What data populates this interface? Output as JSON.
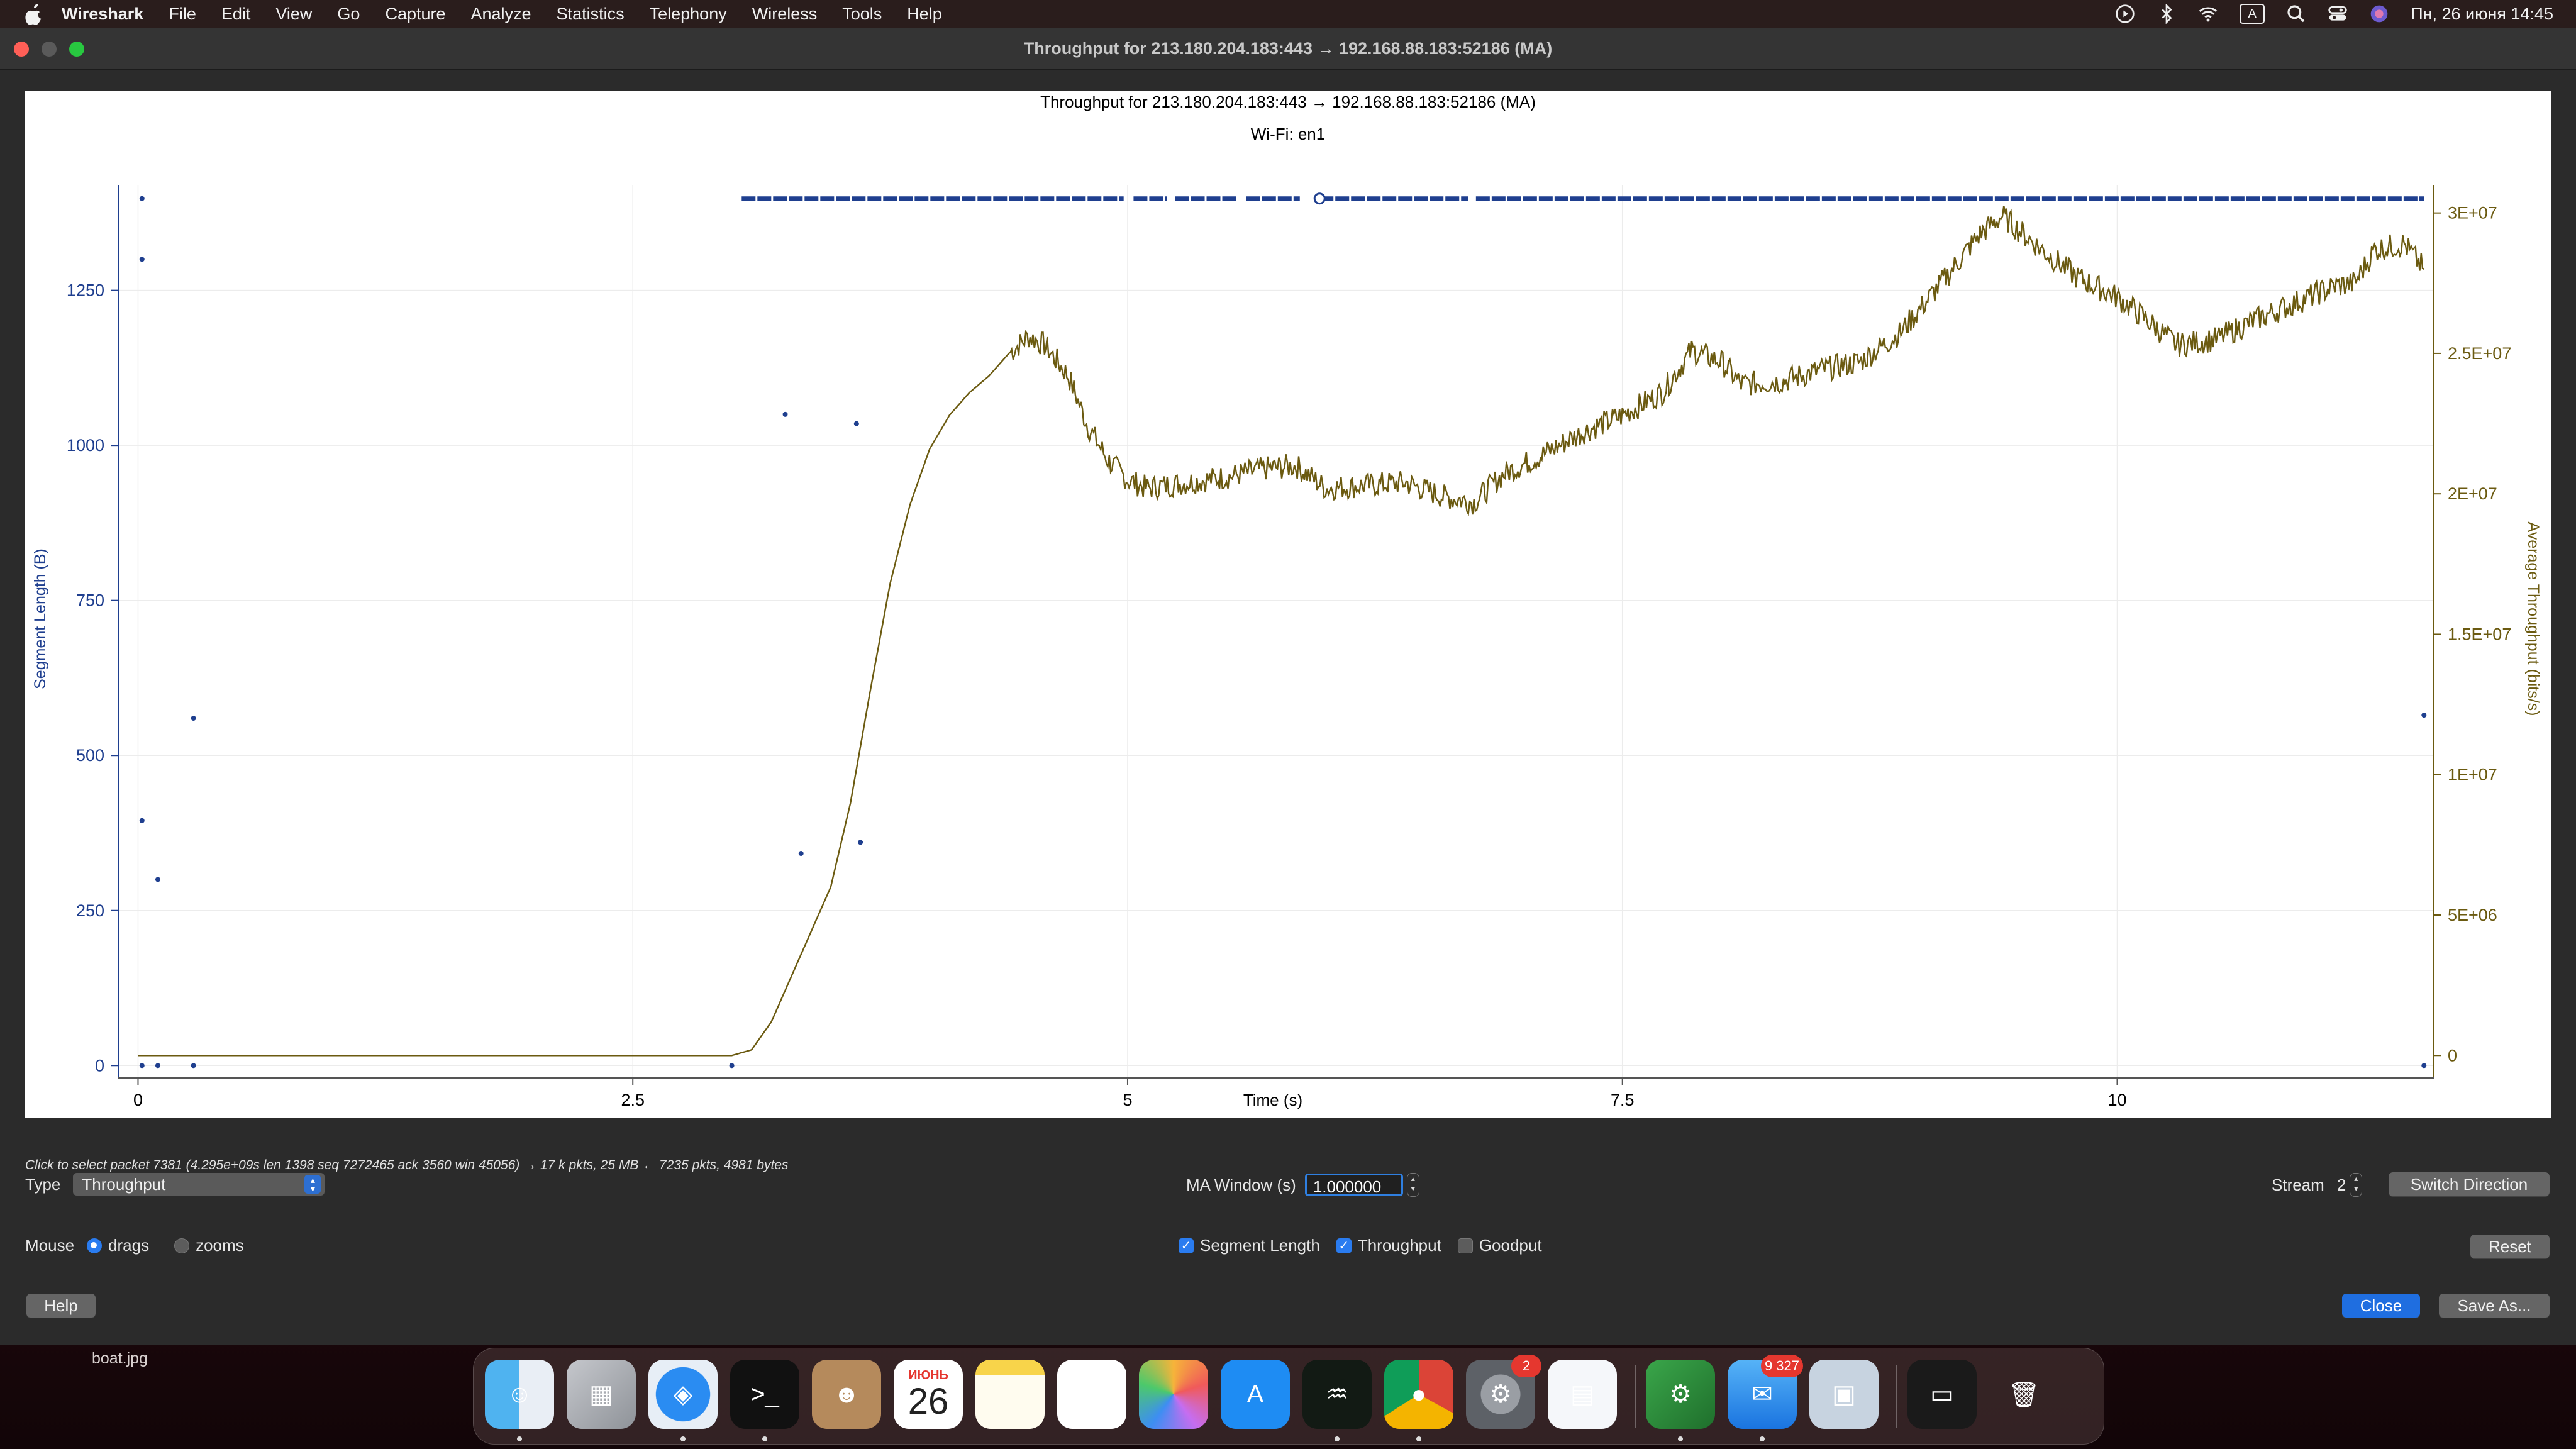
{
  "menubar": {
    "app_name": "Wireshark",
    "items": [
      "File",
      "Edit",
      "View",
      "Go",
      "Capture",
      "Analyze",
      "Statistics",
      "Telephony",
      "Wireless",
      "Tools",
      "Help"
    ],
    "datetime": "Пн, 26 июня  14:45",
    "input_indicator": "A"
  },
  "window": {
    "title": "Throughput for 213.180.204.183:443 → 192.168.88.183:52186 (MA)"
  },
  "chart_data": {
    "type": "scatter+line",
    "title": "Throughput for 213.180.204.183:443 → 192.168.88.183:52186 (MA)",
    "subtitle": "Wi-Fi: en1",
    "xlabel": "Time (s)",
    "ylabel_left": "Segment Length (B)",
    "ylabel_right": "Average Throughput (bits/s)",
    "x_ticks": [
      "0",
      "2.5",
      "5",
      "7.5",
      "10"
    ],
    "x_tick_values": [
      0,
      2.5,
      5,
      7.5,
      10
    ],
    "xlim": [
      -0.1,
      11.6
    ],
    "y_left_ticks": [
      "0",
      "250",
      "500",
      "750",
      "1000",
      "1250"
    ],
    "y_left_tick_values": [
      0,
      250,
      500,
      750,
      1000,
      1250
    ],
    "y_left_lim": [
      -20,
      1420
    ],
    "y_right_ticks": [
      "0",
      "5E+06",
      "1E+07",
      "1.5E+07",
      "2E+07",
      "2.5E+07",
      "3E+07"
    ],
    "y_right_tick_values": [
      0,
      5000000,
      10000000,
      15000000,
      20000000,
      25000000,
      30000000
    ],
    "y_right_lim": [
      -800000,
      31000000
    ],
    "series": [
      {
        "name": "Segment Length",
        "color": "#1f3f8f",
        "points": [
          [
            0.02,
            1398
          ],
          [
            0.02,
            1300
          ],
          [
            0.02,
            395
          ],
          [
            0.02,
            0
          ],
          [
            0.1,
            300
          ],
          [
            0.1,
            0
          ],
          [
            0.28,
            560
          ],
          [
            0.28,
            0
          ],
          [
            3.0,
            0
          ],
          [
            3.27,
            1050
          ],
          [
            3.35,
            342
          ],
          [
            3.63,
            1035
          ],
          [
            3.65,
            360
          ],
          [
            11.55,
            565
          ],
          [
            11.55,
            0
          ]
        ],
        "dense_band": {
          "value": 1398,
          "x_start": 3.05,
          "x_end": 11.55,
          "gaps": [
            [
              4.98,
              5.03
            ],
            [
              5.2,
              5.24
            ],
            [
              5.55,
              5.6
            ],
            [
              5.87,
              5.97
            ],
            [
              6.72,
              6.76
            ]
          ]
        }
      },
      {
        "name": "Throughput",
        "color": "#6b5a10",
        "points": [
          [
            0,
            0
          ],
          [
            3.0,
            0
          ],
          [
            3.1,
            200000
          ],
          [
            3.2,
            1200000
          ],
          [
            3.3,
            2800000
          ],
          [
            3.4,
            4400000
          ],
          [
            3.5,
            6000000
          ],
          [
            3.6,
            9000000
          ],
          [
            3.7,
            13000000
          ],
          [
            3.8,
            16800000
          ],
          [
            3.9,
            19600000
          ],
          [
            4.0,
            21600000
          ],
          [
            4.1,
            22800000
          ],
          [
            4.2,
            23600000
          ],
          [
            4.3,
            24200000
          ],
          [
            4.4,
            25000000
          ],
          [
            4.5,
            25600000
          ],
          [
            4.58,
            25300000
          ],
          [
            4.7,
            24200000
          ],
          [
            4.8,
            22400000
          ],
          [
            4.9,
            21200000
          ],
          [
            5.0,
            20500000
          ],
          [
            5.1,
            20200000
          ],
          [
            5.3,
            20400000
          ],
          [
            5.5,
            20600000
          ],
          [
            5.7,
            20900000
          ],
          [
            5.85,
            21000000
          ],
          [
            6.0,
            20200000
          ],
          [
            6.2,
            20300000
          ],
          [
            6.4,
            20400000
          ],
          [
            6.6,
            19900000
          ],
          [
            6.75,
            19700000
          ],
          [
            6.9,
            20700000
          ],
          [
            7.1,
            21400000
          ],
          [
            7.3,
            22200000
          ],
          [
            7.5,
            22800000
          ],
          [
            7.7,
            23600000
          ],
          [
            7.85,
            25100000
          ],
          [
            8.0,
            24700000
          ],
          [
            8.1,
            23900000
          ],
          [
            8.3,
            24000000
          ],
          [
            8.5,
            24400000
          ],
          [
            8.7,
            24700000
          ],
          [
            8.9,
            25700000
          ],
          [
            9.1,
            27400000
          ],
          [
            9.3,
            29200000
          ],
          [
            9.42,
            29900000
          ],
          [
            9.6,
            28800000
          ],
          [
            9.8,
            27700000
          ],
          [
            10.0,
            27000000
          ],
          [
            10.15,
            26200000
          ],
          [
            10.3,
            25300000
          ],
          [
            10.5,
            25500000
          ],
          [
            10.7,
            26200000
          ],
          [
            10.9,
            26800000
          ],
          [
            11.1,
            27400000
          ],
          [
            11.2,
            27500000
          ],
          [
            11.3,
            28700000
          ],
          [
            11.45,
            28900000
          ],
          [
            11.55,
            28000000
          ]
        ]
      }
    ]
  },
  "status_text": "Click to select packet 7381 (4.295e+09s len 1398 seq 7272465 ack 3560 win 45056) → 17 k pkts, 25 MB ← 7235 pkts, 4981 bytes",
  "controls": {
    "type_label": "Type",
    "type_value": "Throughput",
    "ma_window_label": "MA Window (s)",
    "ma_window_value": "1.000000",
    "stream_label": "Stream",
    "stream_value": "2",
    "switch_direction": "Switch Direction",
    "mouse_label": "Mouse",
    "mouse_drags": "drags",
    "mouse_zooms": "zooms",
    "segment_length": "Segment Length",
    "throughput": "Throughput",
    "goodput": "Goodput",
    "reset": "Reset",
    "help": "Help",
    "close": "Close",
    "save_as": "Save As..."
  },
  "desktop": {
    "file_label": "boat.jpg"
  },
  "dock": {
    "calendar_month": "ИЮНЬ",
    "calendar_day": "26",
    "settings_badge": "2",
    "mail_badge": "9 327",
    "apps": [
      "finder",
      "launchpad",
      "safari",
      "terminal",
      "contacts",
      "calendar",
      "notes",
      "reminders",
      "photos",
      "app-store",
      "activity-monitor",
      "chrome",
      "system-settings",
      "print-preview",
      "wireshark",
      "mail",
      "preview",
      "terminal-window",
      "trash"
    ]
  }
}
